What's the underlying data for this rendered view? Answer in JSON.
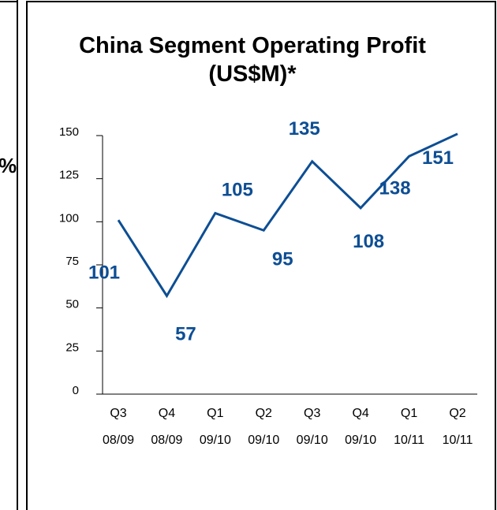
{
  "left_panel_text": "%",
  "chart_data": {
    "type": "line",
    "title": "China Segment Operating Profit (US$M)*",
    "categories": [
      "Q3\n08/09",
      "Q4\n08/09",
      "Q1\n09/10",
      "Q2\n09/10",
      "Q3\n09/10",
      "Q4\n09/10",
      "Q1\n10/11",
      "Q2\n10/11"
    ],
    "series": [
      {
        "name": "China Segment Operating Profit",
        "color": "#0d4e94",
        "values": [
          101,
          57,
          105,
          95,
          135,
          108,
          138,
          151
        ]
      }
    ],
    "ylim": [
      0,
      150
    ],
    "yticks": [
      0,
      25,
      50,
      75,
      100,
      125,
      150
    ],
    "data_labels": true
  }
}
